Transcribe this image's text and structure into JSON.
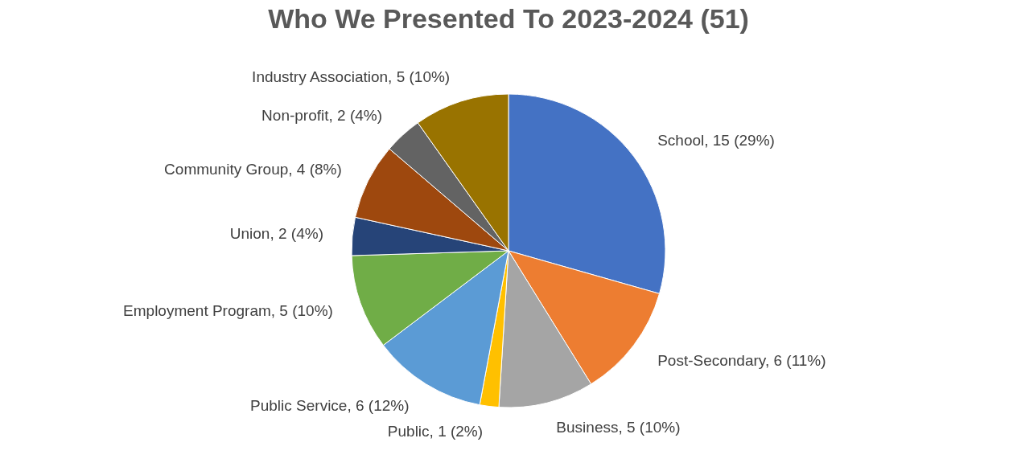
{
  "chart_data": {
    "type": "pie",
    "title": "Who We Presented To 2023-2024 (51)",
    "categories": [
      "School",
      "Post-Secondary",
      "Business",
      "Public",
      "Public Service",
      "Employment Program",
      "Union",
      "Community Group",
      "Non-profit",
      "Industry Association"
    ],
    "values": [
      15,
      6,
      5,
      1,
      6,
      5,
      2,
      4,
      2,
      5
    ],
    "value_labels": [
      "15 (29%)",
      "6 (11%)",
      "5 (10%)",
      "1 (2%)",
      "6 (12%)",
      "5 (10%)",
      "2 (4%)",
      "4 (8%)",
      "2 (4%)",
      "5 (10%)"
    ],
    "colors": [
      "#4472c4",
      "#ed7d31",
      "#a5a5a5",
      "#ffc000",
      "#5b9bd5",
      "#70ad47",
      "#264478",
      "#9e480e",
      "#636363",
      "#997300"
    ],
    "legend": false
  }
}
